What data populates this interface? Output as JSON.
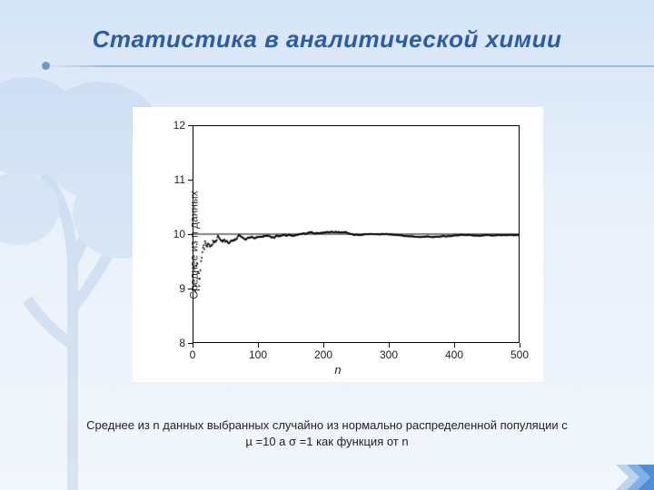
{
  "title": "Статистика в аналитической химии",
  "caption": "Среднее из n  данных выбранных случайно из нормально распределенной  популяции с µ =10 а σ =1 как функция от n",
  "chart": {
    "type": "scatter",
    "background_color": "#ffffff",
    "axis_color": "#000000",
    "point_color": "#000000",
    "reference_line_y": 10,
    "reference_line_color": "#000000",
    "xlabel": "n",
    "xlabel_fontstyle": "italic",
    "xlabel_fontsize": 13,
    "ylabel": "Среднее из n данных",
    "ylabel_fontsize": 12,
    "xlim": [
      0,
      500
    ],
    "ylim": [
      8,
      12
    ],
    "xticks": [
      0,
      100,
      200,
      300,
      400,
      500
    ],
    "yticks": [
      8,
      9,
      10,
      11,
      12
    ],
    "tick_fontsize": 12,
    "point_radius": 1.0,
    "generator": {
      "mu": 10,
      "sigma": 1,
      "n_min": 1,
      "n_max": 500,
      "step": 1,
      "seed": 42
    }
  },
  "colors": {
    "title": "#2a5ca8",
    "slide_bg_top": "#d4e4f7",
    "slide_bg_bottom": "#f2f7fc",
    "hr": "#6e99cc",
    "corner": "#4f8fd6"
  }
}
